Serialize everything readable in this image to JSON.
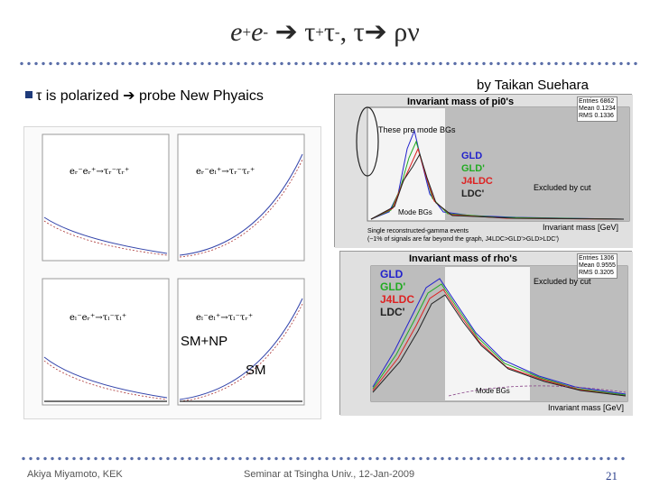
{
  "slide": {
    "title": {
      "e1": "e",
      "sup1": "+",
      "e2": "e",
      "sup2": "-",
      "arrow1": " ➔ ",
      "tau1": "τ",
      "sup3": "+",
      "tau2": "τ",
      "sup4": "-",
      "sep": ", ",
      "tau3": "τ",
      "arrow2": "➔ ",
      "rhonu": "ρν"
    },
    "credit": "by Taikan Suehara",
    "bullet": {
      "prefix": "n",
      "text": "τ is polarized ➔ probe New Phyaics"
    },
    "labels": {
      "sm_np": "SM+NP",
      "sm": "SM"
    },
    "footer": {
      "author": "Akiya Miyamoto, KEK",
      "venue": "Seminar at Tsingha Univ., 12-Jan-2009",
      "page": "21"
    }
  },
  "plots": {
    "grid_formulas": [
      "eᵣ⁻eᵣ⁺→τᵣ⁻τᵣ⁺",
      "eᵣ⁻eₗ⁺→τᵣ⁻τᵣ⁺",
      "eₗ⁻eᵣ⁺→τₗ⁻τₗ⁺",
      "eₗ⁻eₗ⁺→τₗ⁻τᵣ⁺"
    ],
    "pi0": {
      "title": "Invariant mass of pi0's",
      "stats": {
        "entries_label": "Entries",
        "entries": "6862",
        "mean_label": "Mean",
        "mean": "0.1234",
        "rms_label": "RMS",
        "rms": "0.1336"
      },
      "legend": [
        "GLD",
        "GLD'",
        "J4LDC",
        "LDC'"
      ],
      "annotations": {
        "pre_mode": "These pre mode BGs",
        "excluded": "Excluded by cut",
        "mode_bgs": "Mode BGs"
      },
      "xlabel": "Invariant mass [GeV]",
      "xticks": [
        "0.1",
        "0.2",
        "0.3",
        "0.4",
        "0.5"
      ],
      "yticks": [
        "600",
        "500",
        "400",
        "300",
        "200",
        "100",
        "0"
      ],
      "note_line1": "Single reconstructed-gamma events",
      "note_line2": "(~1% of signals are far beyond the graph, J4LDC>GLD'>GLD>LDC')"
    },
    "rho": {
      "title": "Invariant mass of rho's",
      "stats": {
        "entries_label": "Entries",
        "entries": "1306",
        "mean_label": "Mean",
        "mean": "0.9555",
        "rms_label": "RMS",
        "rms": "0.3205"
      },
      "legend": [
        "GLD",
        "GLD'",
        "J4LDC",
        "LDC'"
      ],
      "annotations": {
        "excluded": "Excluded by cut",
        "mode_bgs": "Mode BGs"
      },
      "xlabel": "Invariant mass [GeV]",
      "xticks": [
        "0",
        "0.2",
        "0.4",
        "0.6",
        "0.8",
        "1",
        "1.2",
        "1.4",
        "1.6",
        "1.8",
        "2"
      ],
      "yticks": [
        "1000",
        "800",
        "600",
        "400",
        "200",
        "0"
      ]
    },
    "colors": {
      "gld": "#2222cc",
      "gld2": "#22aa22",
      "j4ldc": "#dd2222",
      "ldc": "#222222",
      "accent": "#2b3f8c"
    }
  }
}
